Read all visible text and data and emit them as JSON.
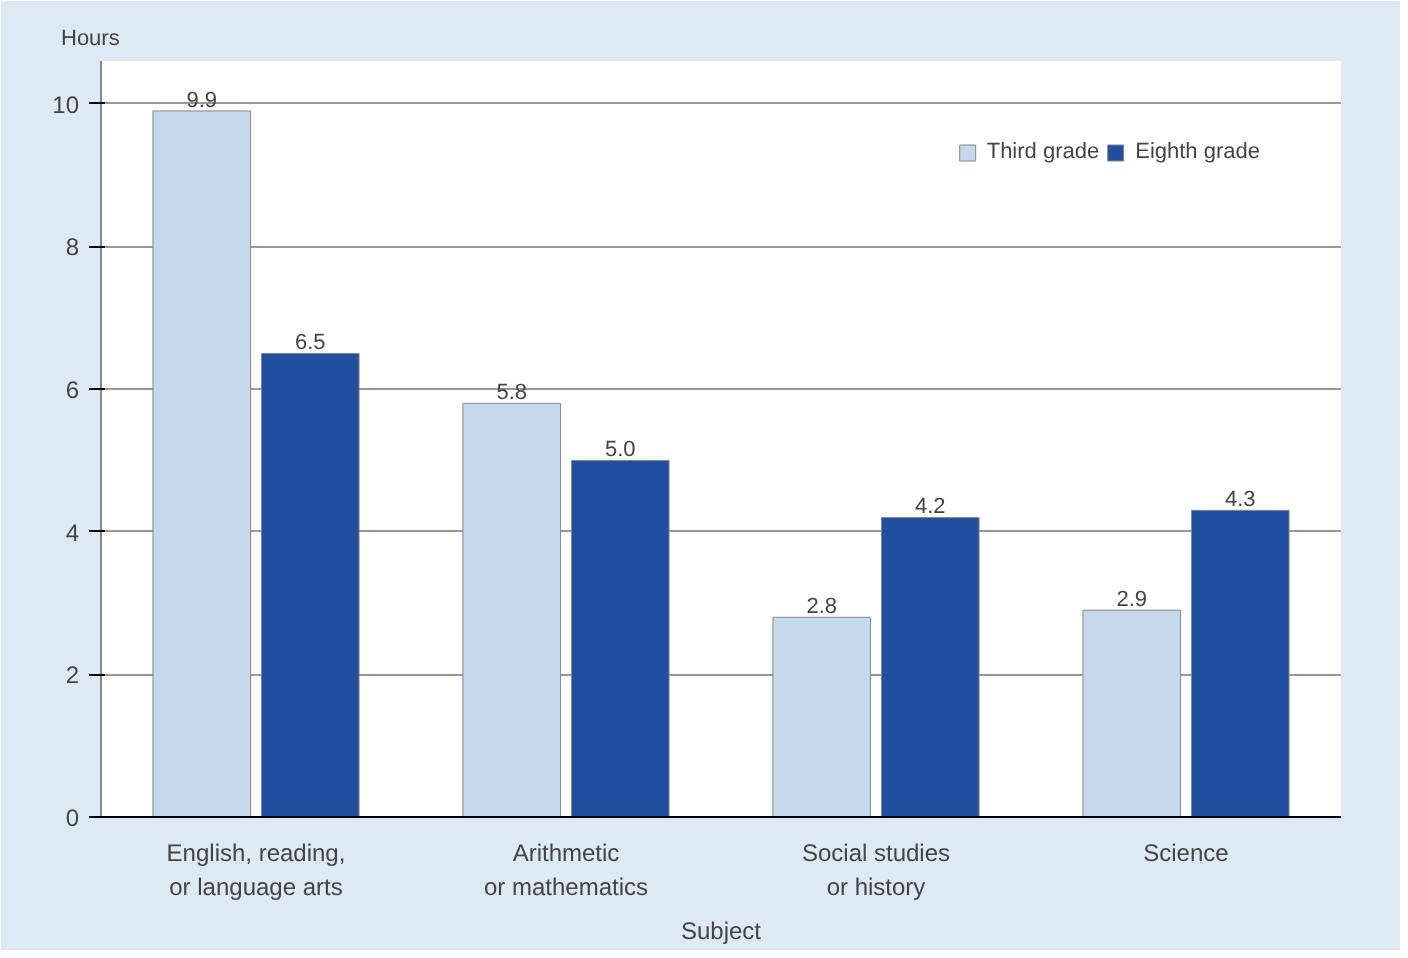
{
  "chart_data": {
    "type": "bar",
    "ylabel": "Hours",
    "xlabel": "Subject",
    "categories": [
      "English, reading,\nor language arts",
      "Arithmetic\nor mathematics",
      "Social studies\nor history",
      "Science"
    ],
    "series": [
      {
        "name": "Third grade",
        "color": "#c5d8ec",
        "values": [
          9.9,
          5.8,
          2.8,
          2.9
        ],
        "value_labels": [
          "9.9",
          "5.8",
          "2.8",
          "2.9"
        ]
      },
      {
        "name": "Eighth grade",
        "color": "#1f4f9e",
        "values": [
          6.5,
          5.0,
          4.2,
          4.3
        ],
        "value_labels": [
          "6.5",
          "5.0",
          "4.2",
          "4.3"
        ]
      }
    ],
    "ylim": [
      0,
      10.6
    ],
    "yticks": [
      0,
      2,
      4,
      6,
      8,
      10
    ],
    "grid": "y",
    "legend": "top right"
  }
}
